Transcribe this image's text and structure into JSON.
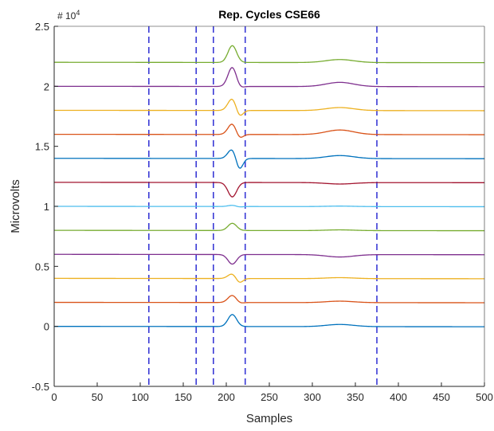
{
  "chart_data": {
    "type": "line",
    "title": "Rep. Cycles CSE66",
    "xlabel": "Samples",
    "ylabel": "Microvolts",
    "exponent_label": "# 10",
    "exponent_power": "4",
    "xlim": [
      0,
      500
    ],
    "ylim": [
      -0.5,
      2.5
    ],
    "y_multiplier": 10000,
    "xticks": [
      "0",
      "50",
      "100",
      "150",
      "200",
      "250",
      "300",
      "350",
      "400",
      "450",
      "500"
    ],
    "yticks": [
      "-0.5",
      "0",
      "0.5",
      "1",
      "1.5",
      "2",
      "2.5"
    ],
    "grid": false,
    "legend": "none",
    "vertical_markers": {
      "x": [
        110,
        165,
        185,
        222,
        375
      ],
      "color": "#3a3ad6",
      "style": "dashed"
    },
    "series": [
      {
        "offset": 0.0,
        "color": "#0072BD",
        "qrs": [
          0.1,
          0.0,
          0.0
        ],
        "t_wave": 0.018
      },
      {
        "offset": 0.2,
        "color": "#D95319",
        "qrs": [
          0.06,
          -0.01,
          0.0
        ],
        "t_wave": 0.012
      },
      {
        "offset": 0.4,
        "color": "#EDB120",
        "qrs": [
          0.04,
          -0.04,
          0.0
        ],
        "t_wave": 0.008
      },
      {
        "offset": 0.6,
        "color": "#7E2F8E",
        "qrs": [
          -0.08,
          0.0,
          0.0
        ],
        "t_wave": -0.02
      },
      {
        "offset": 0.8,
        "color": "#77AC30",
        "qrs": [
          0.06,
          0.0,
          0.0
        ],
        "t_wave": 0.006
      },
      {
        "offset": 1.0,
        "color": "#4DBEEE",
        "qrs": [
          0.01,
          -0.005,
          0.0
        ],
        "t_wave": 0.004
      },
      {
        "offset": 1.2,
        "color": "#A2142F",
        "qrs": [
          -0.12,
          0.0,
          0.0
        ],
        "t_wave": -0.012
      },
      {
        "offset": 1.4,
        "color": "#0072BD",
        "qrs": [
          0.08,
          -0.1,
          0.0
        ],
        "t_wave": 0.025
      },
      {
        "offset": 1.6,
        "color": "#D95319",
        "qrs": [
          0.09,
          -0.04,
          0.0
        ],
        "t_wave": 0.038
      },
      {
        "offset": 1.8,
        "color": "#EDB120",
        "qrs": [
          0.1,
          -0.06,
          0.0
        ],
        "t_wave": 0.025
      },
      {
        "offset": 2.0,
        "color": "#7E2F8E",
        "qrs": [
          0.16,
          -0.02,
          0.0
        ],
        "t_wave": 0.035
      },
      {
        "offset": 2.2,
        "color": "#77AC30",
        "qrs": [
          0.14,
          0.0,
          0.0
        ],
        "t_wave": 0.025
      }
    ]
  }
}
